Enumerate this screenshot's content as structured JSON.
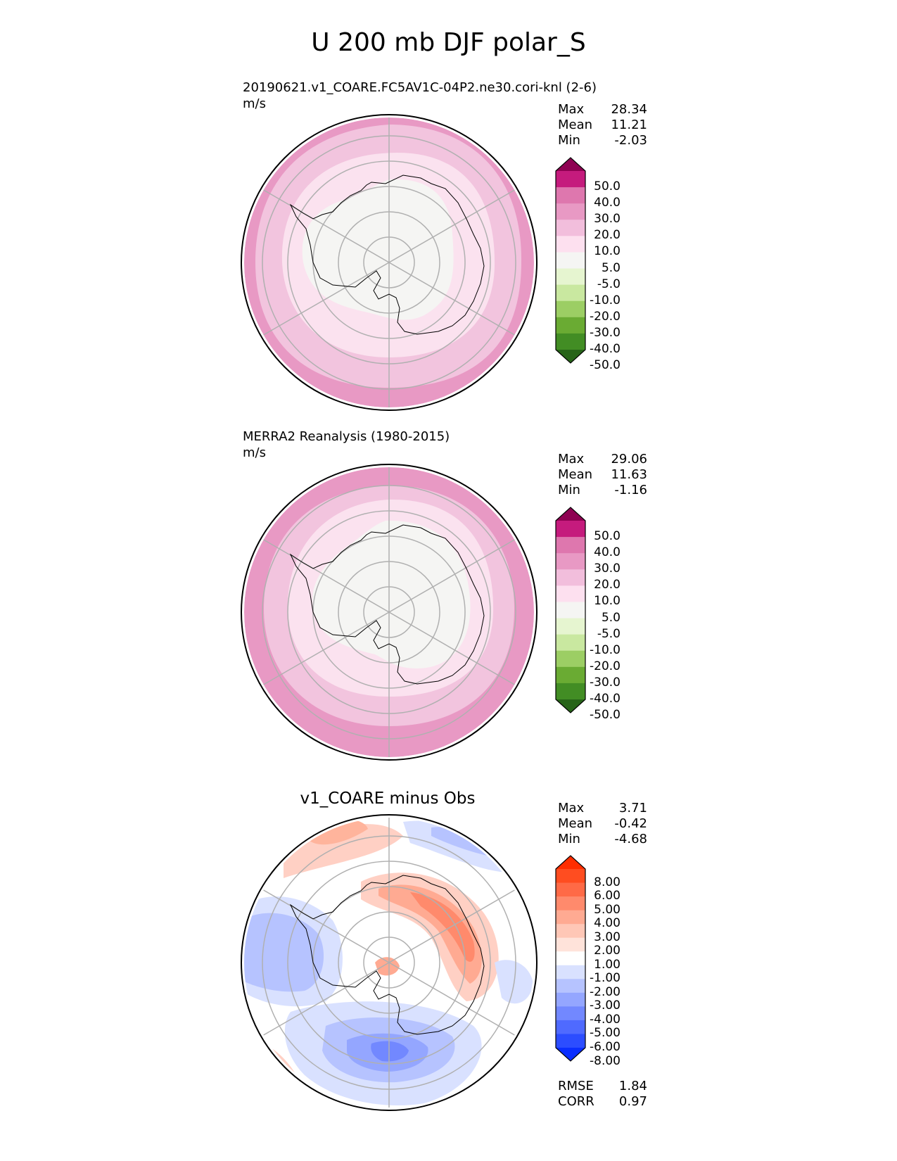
{
  "page_title": "U 200 mb DJF polar_S",
  "chart_data": [
    {
      "type": "polar_contour",
      "panel": "test",
      "title": "",
      "subtitle": "20190621.v1_COARE.FC5AV1C-04P2.ne30.cori-knl (2-6)",
      "units": "m/s",
      "stats": {
        "max_label": "Max",
        "max": "28.34",
        "mean_label": "Mean",
        "mean": "11.21",
        "min_label": "Min",
        "min": "-2.03"
      },
      "colorbar": {
        "ticks": [
          "50.0",
          "40.0",
          "30.0",
          "20.0",
          "10.0",
          "5.0",
          "-5.0",
          "-10.0",
          "-20.0",
          "-30.0",
          "-40.0",
          "-50.0"
        ],
        "colors": [
          "#8e0152",
          "#c51b7d",
          "#de77ae",
          "#e899c4",
          "#f2bedc",
          "#fde0ef",
          "#f5f5f3",
          "#e6f5d0",
          "#c9e8a0",
          "#9cce64",
          "#6aab33",
          "#428d24",
          "#276419"
        ]
      },
      "bands": [
        {
          "level": "20-30",
          "color": "#e899c4"
        },
        {
          "level": "10-20",
          "color": "#f2c4de"
        },
        {
          "level": "5-10",
          "color": "#fbe2ef"
        },
        {
          "level": "-5-5",
          "color": "#f5f5f3"
        }
      ]
    },
    {
      "type": "polar_contour",
      "panel": "reference",
      "title": "",
      "subtitle": "MERRA2 Reanalysis (1980-2015)",
      "units": "m/s",
      "stats": {
        "max_label": "Max",
        "max": "29.06",
        "mean_label": "Mean",
        "mean": "11.63",
        "min_label": "Min",
        "min": "-1.16"
      },
      "colorbar": {
        "ticks": [
          "50.0",
          "40.0",
          "30.0",
          "20.0",
          "10.0",
          "5.0",
          "-5.0",
          "-10.0",
          "-20.0",
          "-30.0",
          "-40.0",
          "-50.0"
        ],
        "colors": [
          "#8e0152",
          "#c51b7d",
          "#de77ae",
          "#e899c4",
          "#f2bedc",
          "#fde0ef",
          "#f5f5f3",
          "#e6f5d0",
          "#c9e8a0",
          "#9cce64",
          "#6aab33",
          "#428d24",
          "#276419"
        ]
      },
      "bands": [
        {
          "level": "20-30",
          "color": "#e899c4"
        },
        {
          "level": "10-20",
          "color": "#f2c4de"
        },
        {
          "level": "5-10",
          "color": "#fbe2ef"
        },
        {
          "level": "-5-5",
          "color": "#f5f5f3"
        }
      ]
    },
    {
      "type": "polar_contour",
      "panel": "difference",
      "title": "v1_COARE minus Obs",
      "subtitle": "",
      "units": "",
      "stats": {
        "max_label": "Max",
        "max": "3.71",
        "mean_label": "Mean",
        "mean": "-0.42",
        "min_label": "Min",
        "min": "-4.68"
      },
      "metrics": {
        "rmse_label": "RMSE",
        "rmse": "1.84",
        "corr_label": "CORR",
        "corr": "0.97"
      },
      "colorbar": {
        "ticks": [
          "8.00",
          "6.00",
          "5.00",
          "4.00",
          "3.00",
          "2.00",
          "1.00",
          "-1.00",
          "-2.00",
          "-3.00",
          "-4.00",
          "-5.00",
          "-6.00",
          "-8.00"
        ],
        "colors": [
          "#ff2e00",
          "#ff4d20",
          "#ff6a46",
          "#ff8a6c",
          "#ffaa92",
          "#ffc7b6",
          "#ffe3da",
          "#ffffff",
          "#d9e1ff",
          "#b6c3ff",
          "#94a6ff",
          "#7288ff",
          "#4f6aff",
          "#2c4dff",
          "#0a2eff"
        ]
      }
    }
  ],
  "colors": {
    "grid": "#b0b0b0",
    "coast": "#000000"
  }
}
